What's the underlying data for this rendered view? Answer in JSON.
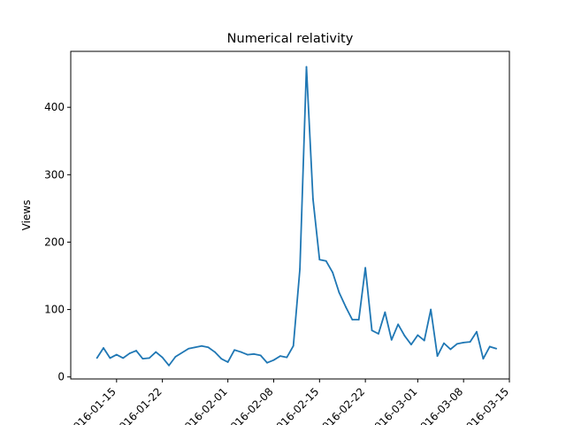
{
  "chart_data": {
    "type": "line",
    "title": "Numerical relativity",
    "xlabel": "",
    "ylabel": "Views",
    "line_color": "#1f77b4",
    "grid": false,
    "legend": "none",
    "xlim": [
      "2016-01-08",
      "2016-03-15"
    ],
    "ylim": [
      -3,
      483
    ],
    "x_ticks": [
      "2016-01-15",
      "2016-01-22",
      "2016-02-01",
      "2016-02-08",
      "2016-02-15",
      "2016-02-22",
      "2016-03-01",
      "2016-03-08",
      "2016-03-15"
    ],
    "x_tick_labels": [
      "2016-01-15",
      "2016-01-22",
      "2016-02-01",
      "2016-02-08",
      "2016-02-15",
      "2016-02-22",
      "2016-03-01",
      "2016-03-08",
      "2016-03-15"
    ],
    "y_ticks": [
      0,
      100,
      200,
      300,
      400
    ],
    "series": [
      {
        "x": [
          "2016-01-12",
          "2016-01-13",
          "2016-01-14",
          "2016-01-15",
          "2016-01-16",
          "2016-01-17",
          "2016-01-18",
          "2016-01-19",
          "2016-01-20",
          "2016-01-21",
          "2016-01-22",
          "2016-01-23",
          "2016-01-24",
          "2016-01-26",
          "2016-01-27",
          "2016-01-28",
          "2016-01-29",
          "2016-01-30",
          "2016-01-31",
          "2016-02-01",
          "2016-02-02",
          "2016-02-03",
          "2016-02-04",
          "2016-02-05",
          "2016-02-06",
          "2016-02-07",
          "2016-02-08",
          "2016-02-09",
          "2016-02-10",
          "2016-02-11",
          "2016-02-12",
          "2016-02-13",
          "2016-02-14",
          "2016-02-15",
          "2016-02-16",
          "2016-02-17",
          "2016-02-18",
          "2016-02-19",
          "2016-02-20",
          "2016-02-21",
          "2016-02-22",
          "2016-02-23",
          "2016-02-24",
          "2016-02-25",
          "2016-02-26",
          "2016-02-27",
          "2016-02-28",
          "2016-02-29",
          "2016-03-01",
          "2016-03-02",
          "2016-03-03",
          "2016-03-04",
          "2016-03-05",
          "2016-03-06",
          "2016-03-07",
          "2016-03-08",
          "2016-03-09",
          "2016-03-10",
          "2016-03-11",
          "2016-03-12",
          "2016-03-13"
        ],
        "y": [
          28,
          43,
          28,
          33,
          28,
          35,
          39,
          27,
          28,
          37,
          29,
          17,
          30,
          42,
          44,
          46,
          44,
          37,
          27,
          22,
          40,
          37,
          33,
          34,
          32,
          21,
          25,
          31,
          29,
          46,
          160,
          460,
          264,
          174,
          172,
          155,
          125,
          104,
          85,
          85,
          162,
          69,
          64,
          96,
          55,
          78,
          61,
          48,
          62,
          54,
          100,
          31,
          50,
          41,
          49,
          51,
          52,
          67,
          27,
          45,
          42
        ]
      }
    ]
  }
}
